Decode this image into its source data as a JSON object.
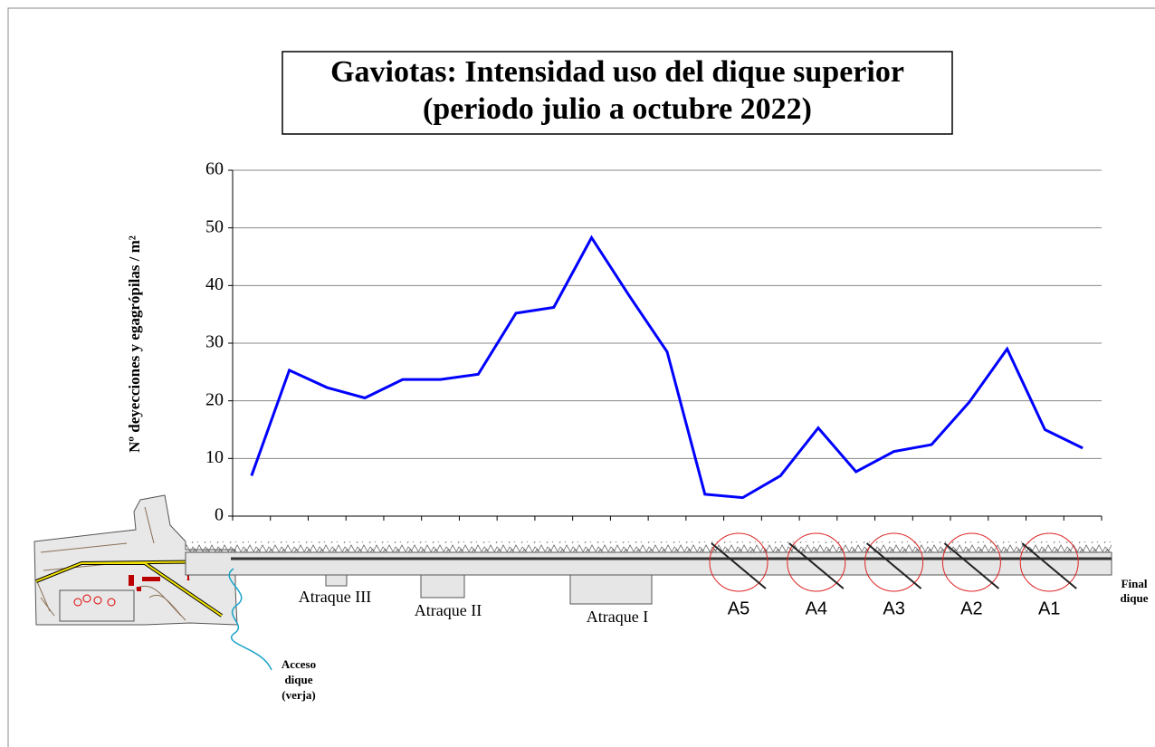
{
  "chart_data": {
    "type": "line",
    "title": "Gaviotas: Intensidad uso del dique superior",
    "subtitle": "(periodo julio a octubre 2022)",
    "y_label": "Nº deyecciones y egagrópilas / m²",
    "categories": [
      null,
      null,
      null,
      null,
      null,
      null,
      null,
      null,
      null,
      null,
      null,
      null,
      null,
      null,
      null,
      null,
      null,
      null,
      null,
      null,
      null,
      null,
      null
    ],
    "values": [
      7,
      25.3,
      22.3,
      20.5,
      23.7,
      23.7,
      24.6,
      35.2,
      36.2,
      48.3,
      38.2,
      28.5,
      3.8,
      3.2,
      7,
      15.3,
      7.7,
      11.2,
      12.4,
      19.8,
      29,
      15,
      11.8
    ],
    "color": "#0000ff",
    "ylim": [
      0,
      60
    ],
    "yticks": [
      0,
      10,
      20,
      30,
      40,
      50,
      60
    ],
    "grid": true
  },
  "diagram": {
    "berths": [
      "Atraque III",
      "Atraque II",
      "Atraque I"
    ],
    "zones": [
      "A5",
      "A4",
      "A3",
      "A2",
      "A1"
    ],
    "end_label": [
      "Final",
      "dique"
    ],
    "access_label": [
      "Acceso",
      "dique",
      "(verja)"
    ],
    "info_mark": "i"
  }
}
